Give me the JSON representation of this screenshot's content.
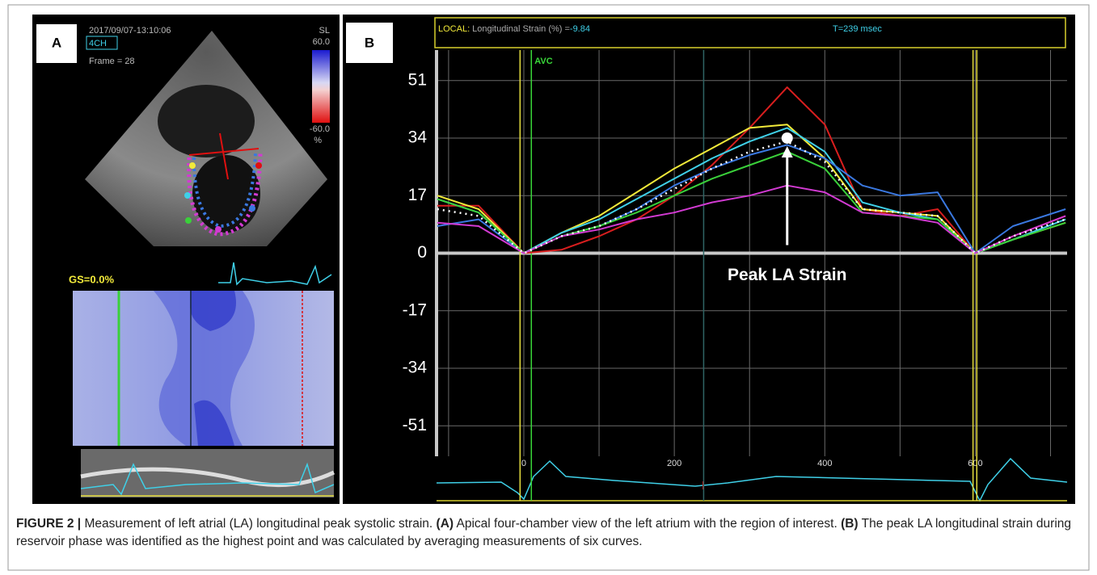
{
  "chart_data": {
    "type": "line",
    "header": {
      "local": "LOCAL:",
      "measure": "Longitudinal Strain (%) =",
      "value": "-9.84",
      "time": "T=239 msec"
    },
    "x": [
      -115,
      -60,
      0,
      50,
      100,
      150,
      200,
      250,
      300,
      350,
      400,
      450,
      500,
      550,
      600,
      650,
      720
    ],
    "series": [
      {
        "color": "#d81e1e",
        "values": [
          14,
          14,
          0,
          1,
          5,
          10,
          17,
          26,
          37,
          49,
          38,
          13,
          11,
          13,
          0,
          5,
          11
        ]
      },
      {
        "color": "#f2ea3a",
        "values": [
          17,
          13,
          0,
          6,
          11,
          18,
          25,
          31,
          37,
          38,
          28,
          13,
          12,
          11,
          0,
          4,
          9
        ]
      },
      {
        "color": "#3fd0e8",
        "values": [
          16,
          12,
          0,
          6,
          10,
          16,
          22,
          28,
          33,
          37,
          30,
          15,
          12,
          10,
          0,
          4,
          10
        ]
      },
      {
        "color": "#3a78e0",
        "values": [
          8,
          10,
          0,
          5,
          8,
          13,
          20,
          25,
          29,
          32,
          28,
          20,
          17,
          18,
          0,
          8,
          13
        ]
      },
      {
        "color": "#3ad03a",
        "values": [
          16,
          12,
          0,
          5,
          8,
          12,
          17,
          22,
          26,
          30,
          25,
          12,
          11,
          10,
          0,
          4,
          9
        ]
      },
      {
        "color": "#d23ad2",
        "values": [
          9,
          8,
          0,
          5,
          7,
          10,
          12,
          15,
          17,
          20,
          18,
          12,
          11,
          9,
          0,
          5,
          11
        ]
      },
      {
        "color": "#ffffff",
        "style": "dotted",
        "values": [
          13,
          11,
          0,
          5,
          8,
          13,
          19,
          25,
          30,
          33,
          27,
          13,
          12,
          11,
          0,
          5,
          10
        ]
      }
    ],
    "xlim": [
      -116,
      722
    ],
    "xticks": [
      0,
      200,
      400,
      600
    ],
    "xgrid_minor": [
      -100,
      100,
      300,
      500,
      700
    ],
    "ylim": [
      -60,
      60
    ],
    "yticks": [
      51,
      34,
      17,
      0,
      -17,
      -34,
      -51
    ],
    "grid": true,
    "vlines": [
      {
        "x": -5,
        "color": "#e8e040"
      },
      {
        "x": 10,
        "color": "#39d639",
        "label": "AVC"
      },
      {
        "x": 239,
        "color": "#2f6464"
      },
      {
        "x": 597,
        "color": "#e8e040"
      },
      {
        "x": 602,
        "color": "#e8e040"
      }
    ],
    "annotation": {
      "text": "Peak LA Strain",
      "x": 350,
      "y": 34
    }
  },
  "panel_a": {
    "label": "A",
    "timestamp": "2017/09/07-13:10:06",
    "view": "4CH",
    "frame": "Frame = 28",
    "scale_name": "SL",
    "scale_max": "60.0",
    "scale_min": "-60.0",
    "scale_unit": "%",
    "gs": "GS=0.0%"
  },
  "panel_b": {
    "label": "B"
  },
  "caption": {
    "figure": "FIGURE 2 |",
    "text1": "Measurement of left atrial (LA) longitudinal peak systolic strain.",
    "a": "(A)",
    "text2": "Apical four-chamber view of the left atrium with the region of interest.",
    "b": "(B)",
    "text3": "The peak LA longitudinal strain during reservoir phase was identified as the highest point and was calculated by averaging measurements of six curves."
  }
}
